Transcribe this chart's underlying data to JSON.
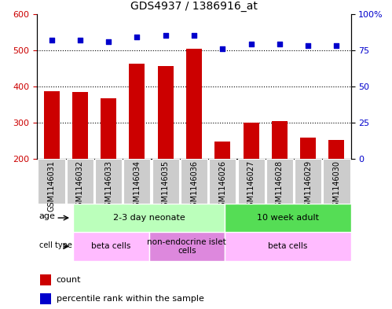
{
  "title": "GDS4937 / 1386916_at",
  "samples": [
    "GSM1146031",
    "GSM1146032",
    "GSM1146033",
    "GSM1146034",
    "GSM1146035",
    "GSM1146036",
    "GSM1146026",
    "GSM1146027",
    "GSM1146028",
    "GSM1146029",
    "GSM1146030"
  ],
  "counts": [
    388,
    385,
    368,
    462,
    456,
    505,
    248,
    301,
    304,
    260,
    253
  ],
  "percentiles": [
    82,
    82,
    81,
    84,
    85,
    85,
    76,
    79,
    79,
    78,
    78
  ],
  "ylim_left": [
    200,
    600
  ],
  "ylim_right": [
    0,
    100
  ],
  "yticks_left": [
    200,
    300,
    400,
    500,
    600
  ],
  "yticks_right": [
    0,
    25,
    50,
    75,
    100
  ],
  "bar_color": "#cc0000",
  "dot_color": "#0000cc",
  "bar_width": 0.55,
  "age_groups": [
    {
      "label": "2-3 day neonate",
      "start": 0,
      "end": 6,
      "color": "#bbffbb"
    },
    {
      "label": "10 week adult",
      "start": 6,
      "end": 11,
      "color": "#55dd55"
    }
  ],
  "cell_type_groups": [
    {
      "label": "beta cells",
      "start": 0,
      "end": 3,
      "color": "#ffbbff"
    },
    {
      "label": "non-endocrine islet\ncells",
      "start": 3,
      "end": 6,
      "color": "#dd88dd"
    },
    {
      "label": "beta cells",
      "start": 6,
      "end": 11,
      "color": "#ffbbff"
    }
  ],
  "grid_yticks": [
    300,
    400,
    500
  ],
  "background_color": "#ffffff",
  "tick_label_color_left": "#cc0000",
  "tick_label_color_right": "#0000cc",
  "sample_box_color": "#cccccc",
  "border_color": "#888888"
}
